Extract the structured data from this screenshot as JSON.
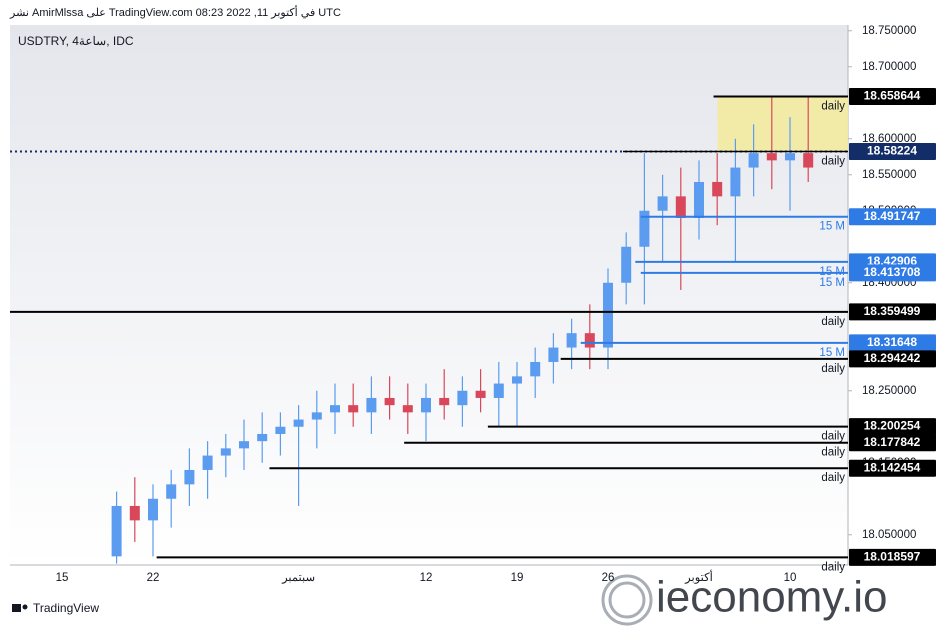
{
  "header": {
    "published": "نشر AmirMlssa على TradingView.com 08:23 2022 ,11 في أكتوبر UTC",
    "symbol": "USDTRY, 4ساعة, IDC"
  },
  "chart_data": {
    "type": "candlestick",
    "categories": [
      "15",
      null,
      null,
      null,
      null,
      "22",
      null,
      null,
      null,
      null,
      null,
      null,
      null,
      "سبتمبر",
      null,
      null,
      null,
      null,
      null,
      null,
      "12",
      null,
      null,
      null,
      null,
      "19",
      null,
      null,
      null,
      null,
      "26",
      null,
      null,
      null,
      null,
      "أكتوبر",
      null,
      null,
      null,
      null,
      "10",
      null
    ],
    "open": [
      null,
      null,
      null,
      18.02,
      18.09,
      18.07,
      18.1,
      18.12,
      18.14,
      18.16,
      18.17,
      18.18,
      18.19,
      18.2,
      18.21,
      18.22,
      18.23,
      18.22,
      18.24,
      18.23,
      18.22,
      18.24,
      18.23,
      18.25,
      18.24,
      18.26,
      18.27,
      18.29,
      18.31,
      18.33,
      18.31,
      18.4,
      18.45,
      18.5,
      18.52,
      18.49,
      18.54,
      18.52,
      18.56,
      18.58,
      18.57,
      18.58
    ],
    "high": [
      null,
      null,
      null,
      18.11,
      18.13,
      18.12,
      18.14,
      18.17,
      18.18,
      18.19,
      18.21,
      18.22,
      18.22,
      18.23,
      18.25,
      18.26,
      18.26,
      18.27,
      18.27,
      18.26,
      18.26,
      18.28,
      18.27,
      18.28,
      18.29,
      18.29,
      18.31,
      18.33,
      18.35,
      18.37,
      18.42,
      18.47,
      18.58,
      18.55,
      18.56,
      18.57,
      18.58,
      18.6,
      18.62,
      18.66,
      18.63,
      18.66
    ],
    "low": [
      null,
      null,
      null,
      18.01,
      18.04,
      18.02,
      18.06,
      18.09,
      18.1,
      18.13,
      18.14,
      18.15,
      18.16,
      18.09,
      18.17,
      18.19,
      18.2,
      18.19,
      18.21,
      18.19,
      18.18,
      18.21,
      18.2,
      18.22,
      18.2,
      18.2,
      18.24,
      18.26,
      18.28,
      18.28,
      18.28,
      18.37,
      18.37,
      18.43,
      18.39,
      18.46,
      18.48,
      18.43,
      18.52,
      18.53,
      18.5,
      18.54
    ],
    "close": [
      null,
      null,
      null,
      18.09,
      18.07,
      18.1,
      18.12,
      18.14,
      18.16,
      18.17,
      18.18,
      18.19,
      18.2,
      18.21,
      18.22,
      18.23,
      18.22,
      18.24,
      18.23,
      18.22,
      18.24,
      18.23,
      18.25,
      18.24,
      18.26,
      18.27,
      18.29,
      18.31,
      18.33,
      18.31,
      18.4,
      18.45,
      18.5,
      18.52,
      18.49,
      18.54,
      18.52,
      18.56,
      18.58,
      18.57,
      18.58,
      18.56
    ],
    "up_color": "#5b9cf0",
    "down_color": "#d9475a",
    "ylim": [
      18.008,
      18.758
    ],
    "yticks": [
      {
        "value": 18.75,
        "label": "18.750000"
      },
      {
        "value": 18.7,
        "label": "18.700000"
      },
      {
        "value": 18.6,
        "label": "18.600000"
      },
      {
        "value": 18.55,
        "label": "18.550000"
      },
      {
        "value": 18.5,
        "label": "18.500000"
      },
      {
        "value": 18.4,
        "label": "18.400000"
      },
      {
        "value": 18.25,
        "label": "18.250000"
      },
      {
        "value": 18.15,
        "label": "18.150000"
      },
      {
        "value": 18.05,
        "label": "18.050000"
      }
    ],
    "levels": [
      {
        "value": 18.658644,
        "note": "daily",
        "color": "#000000",
        "from": 35.8,
        "style": "solid"
      },
      {
        "value": 18.58224,
        "note": "daily",
        "color": "#132d68",
        "from": null,
        "style": "dotted"
      },
      {
        "value": 18.491747,
        "note": "15 M",
        "color": "#2f7be6",
        "from": 31.8,
        "style": "solid"
      },
      {
        "value": 18.42906,
        "note": "15 M",
        "color": "#2f7be6",
        "from": 31.5,
        "style": "solid"
      },
      {
        "value": 18.413708,
        "note": "15 M",
        "color": "#2f7be6",
        "from": 31.8,
        "style": "solid"
      },
      {
        "value": 18.359499,
        "note": "daily",
        "color": "#000000",
        "from": null,
        "style": "solid"
      },
      {
        "value": 18.31648,
        "note": "15 M",
        "color": "#2f7be6",
        "from": 28.5,
        "style": "solid"
      },
      {
        "value": 18.294242,
        "note": "daily",
        "color": "#000000",
        "from": 27.4,
        "style": "solid"
      },
      {
        "value": 18.200254,
        "note": "daily",
        "color": "#000000",
        "from": 23.4,
        "style": "solid"
      },
      {
        "value": 18.177842,
        "note": "daily",
        "color": "#000000",
        "from": 18.8,
        "style": "solid"
      },
      {
        "value": 18.142454,
        "note": "daily",
        "color": "#000000",
        "from": 11.4,
        "style": "solid"
      },
      {
        "value": 18.018597,
        "note": "daily",
        "color": "#000000",
        "from": 5.2,
        "style": "solid"
      }
    ]
  },
  "footer": {
    "brand": "TradingView",
    "watermark": "ieconomy.io"
  }
}
